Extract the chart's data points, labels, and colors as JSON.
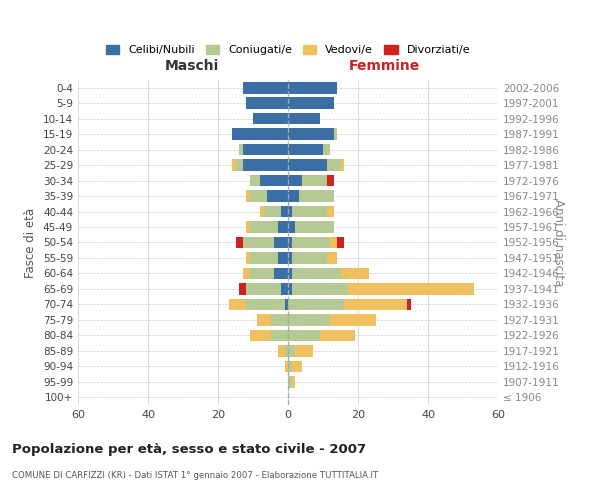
{
  "age_groups": [
    "100+",
    "95-99",
    "90-94",
    "85-89",
    "80-84",
    "75-79",
    "70-74",
    "65-69",
    "60-64",
    "55-59",
    "50-54",
    "45-49",
    "40-44",
    "35-39",
    "30-34",
    "25-29",
    "20-24",
    "15-19",
    "10-14",
    "5-9",
    "0-4"
  ],
  "birth_years": [
    "≤ 1906",
    "1907-1911",
    "1912-1916",
    "1917-1921",
    "1922-1926",
    "1927-1931",
    "1932-1936",
    "1937-1941",
    "1942-1946",
    "1947-1951",
    "1952-1956",
    "1957-1961",
    "1962-1966",
    "1967-1971",
    "1972-1976",
    "1977-1981",
    "1982-1986",
    "1987-1991",
    "1992-1996",
    "1997-2001",
    "2002-2006"
  ],
  "colors": {
    "celibe": "#3a6ea5",
    "coniugato": "#b5c994",
    "vedovo": "#f0c060",
    "divorziato": "#cc2222"
  },
  "maschi": {
    "celibe": [
      0,
      0,
      0,
      0,
      0,
      0,
      1,
      2,
      4,
      3,
      4,
      3,
      2,
      6,
      8,
      13,
      13,
      16,
      10,
      12,
      13
    ],
    "coniugato": [
      0,
      0,
      0,
      1,
      5,
      5,
      11,
      10,
      7,
      8,
      9,
      8,
      5,
      5,
      3,
      2,
      1,
      0,
      0,
      0,
      0
    ],
    "vedovo": [
      0,
      0,
      1,
      2,
      6,
      4,
      5,
      0,
      2,
      1,
      0,
      1,
      1,
      1,
      0,
      1,
      0,
      0,
      0,
      0,
      0
    ],
    "divorziato": [
      0,
      0,
      0,
      0,
      0,
      0,
      0,
      2,
      0,
      0,
      2,
      0,
      0,
      0,
      0,
      0,
      0,
      0,
      0,
      0,
      0
    ]
  },
  "femmine": {
    "nubile": [
      0,
      0,
      0,
      0,
      0,
      0,
      0,
      1,
      1,
      1,
      1,
      2,
      1,
      3,
      4,
      11,
      10,
      13,
      9,
      13,
      14
    ],
    "coniugata": [
      0,
      1,
      1,
      2,
      9,
      12,
      16,
      16,
      14,
      10,
      11,
      11,
      10,
      10,
      7,
      4,
      2,
      1,
      0,
      0,
      0
    ],
    "vedova": [
      0,
      1,
      3,
      5,
      10,
      13,
      18,
      36,
      8,
      3,
      2,
      0,
      2,
      0,
      0,
      1,
      0,
      0,
      0,
      0,
      0
    ],
    "divorziata": [
      0,
      0,
      0,
      0,
      0,
      0,
      1,
      0,
      0,
      0,
      2,
      0,
      0,
      0,
      2,
      0,
      0,
      0,
      0,
      0,
      0
    ]
  },
  "title": "Popolazione per età, sesso e stato civile - 2007",
  "subtitle": "COMUNE DI CARFIZZI (KR) - Dati ISTAT 1° gennaio 2007 - Elaborazione TUTTITALIA.IT",
  "xlabel_left": "Maschi",
  "xlabel_right": "Femmine",
  "ylabel_left": "Fasce di età",
  "ylabel_right": "Anni di nascita",
  "xlim": 60,
  "legend_labels": [
    "Celibi/Nubili",
    "Coniugati/e",
    "Vedovi/e",
    "Divorziati/e"
  ],
  "background_color": "#ffffff",
  "grid_color": "#cccccc"
}
